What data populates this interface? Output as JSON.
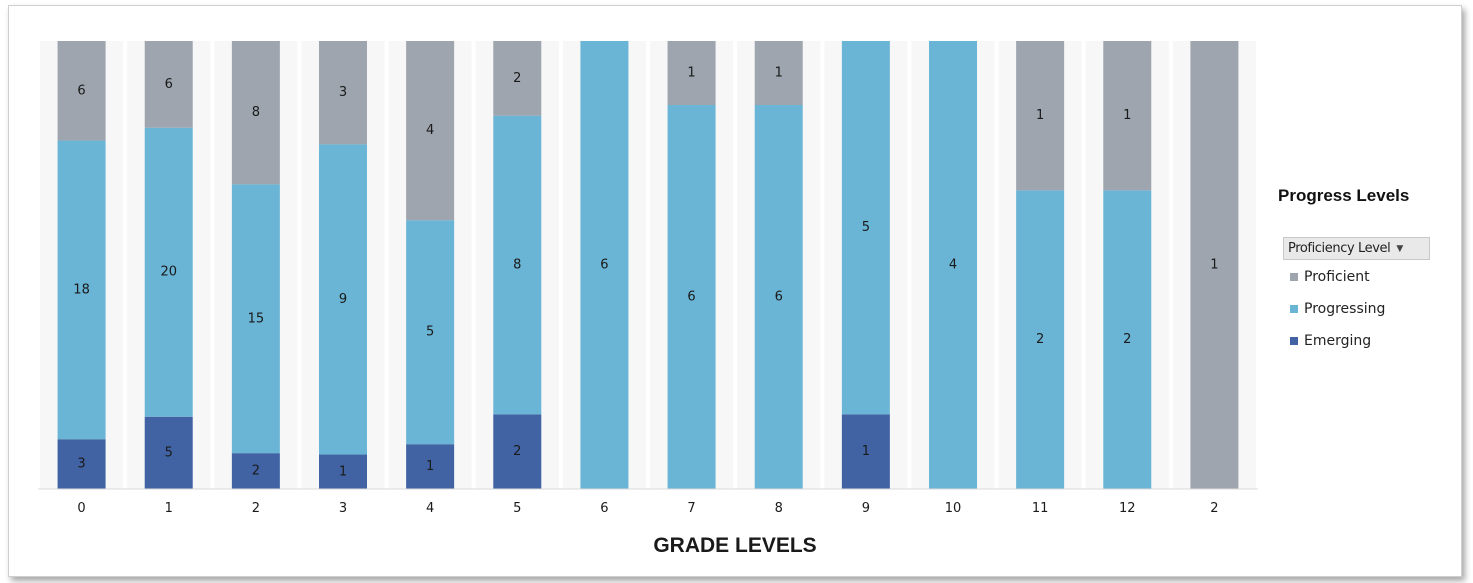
{
  "chart_data": {
    "type": "bar",
    "stacked": true,
    "xlabel": "GRADE LEVELS",
    "categories": [
      "0",
      "1",
      "2",
      "3",
      "4",
      "5",
      "6",
      "7",
      "8",
      "9",
      "10",
      "11",
      "12",
      "2"
    ],
    "series": [
      {
        "name": "Emerging",
        "color": "#4163a4",
        "values": [
          3,
          5,
          2,
          1,
          1,
          2,
          0,
          0,
          0,
          1,
          0,
          0,
          0,
          0
        ]
      },
      {
        "name": "Progressing",
        "color": "#6ab4d5",
        "values": [
          18,
          20,
          15,
          9,
          5,
          8,
          6,
          6,
          6,
          5,
          4,
          2,
          2,
          0
        ]
      },
      {
        "name": "Proficient",
        "color": "#9ea5ae",
        "values": [
          6,
          6,
          8,
          3,
          4,
          2,
          0,
          1,
          1,
          0,
          0,
          1,
          1,
          1
        ]
      }
    ],
    "normalized": true,
    "grid": false
  },
  "legend": {
    "title": "Progress Levels",
    "filter_label": "Proficiency Level",
    "items": [
      {
        "label": "Proficient",
        "color": "#9ea5ae"
      },
      {
        "label": "Progressing",
        "color": "#6ab4d5"
      },
      {
        "label": "Emerging",
        "color": "#4163a4"
      }
    ]
  }
}
